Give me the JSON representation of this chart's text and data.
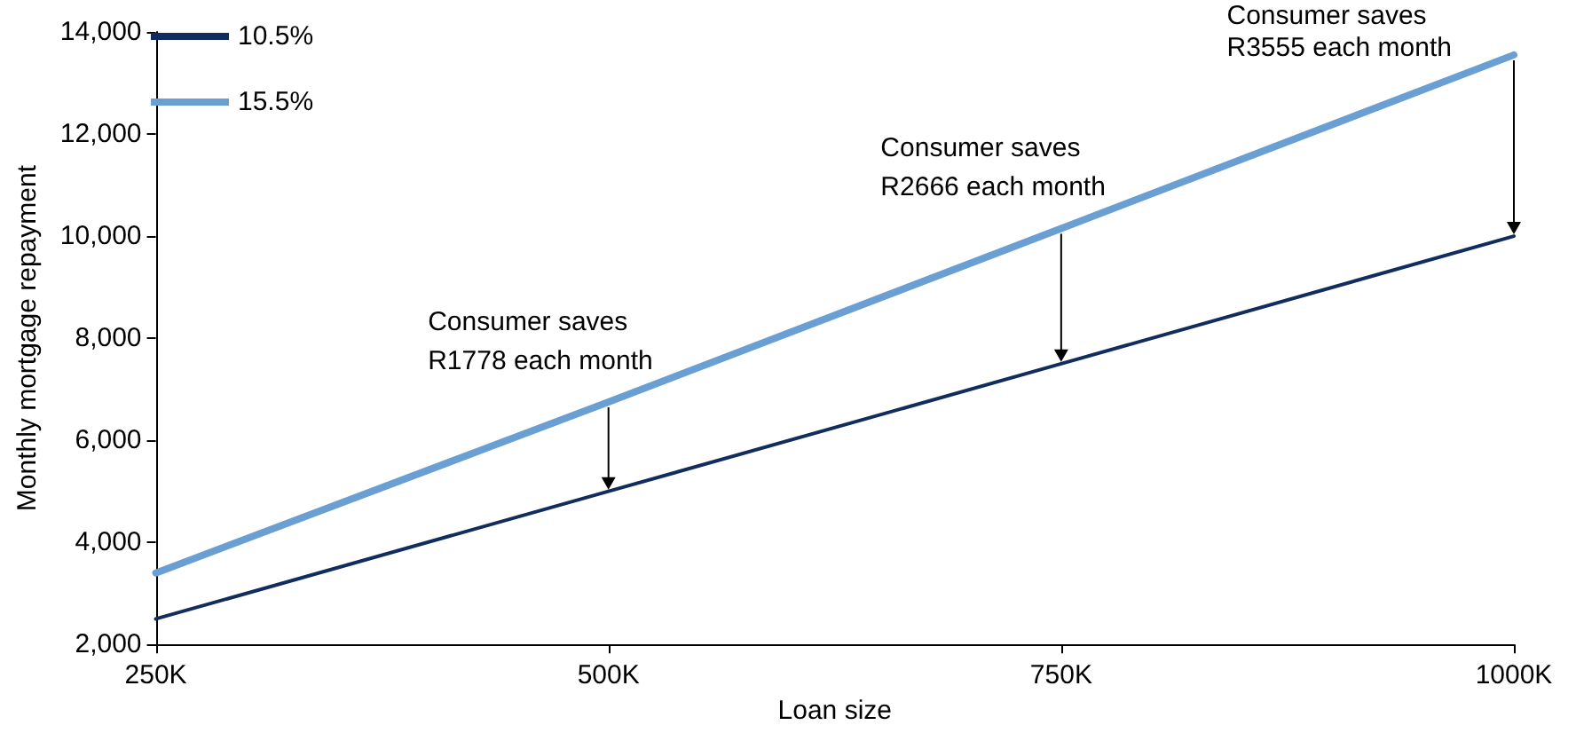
{
  "chart_data": {
    "type": "line",
    "xlabel": "Loan size",
    "ylabel": "Monthly mortgage repayment",
    "x": [
      250000,
      500000,
      750000,
      1000000
    ],
    "series": [
      {
        "name": "10.5%",
        "color": "#112d5e",
        "values": [
          2500,
          5000,
          7500,
          10000
        ]
      },
      {
        "name": "15.5%",
        "color": "#6a9fd3",
        "values": [
          3400,
          6750,
          10150,
          13550
        ]
      }
    ],
    "xlim": [
      250000,
      1000000
    ],
    "xticks": [
      {
        "value": 250000,
        "label": "250K"
      },
      {
        "value": 500000,
        "label": "500K"
      },
      {
        "value": 750000,
        "label": "750K"
      },
      {
        "value": 1000000,
        "label": "1000K"
      }
    ],
    "ylim": [
      2000,
      14000
    ],
    "yticks": [
      {
        "value": 2000,
        "label": "2,000"
      },
      {
        "value": 4000,
        "label": "4,000"
      },
      {
        "value": 6000,
        "label": "6,000"
      },
      {
        "value": 8000,
        "label": "8,000"
      },
      {
        "value": 10000,
        "label": "10,000"
      },
      {
        "value": 12000,
        "label": "12,000"
      },
      {
        "value": 14000,
        "label": "14,000"
      }
    ],
    "annotations": [
      {
        "text": "Consumer saves\nR1778 each month",
        "x": 500000,
        "y": 6750
      },
      {
        "text": "Consumer saves\nR2666 each month",
        "x": 750000,
        "y": 10150
      },
      {
        "text": "Consumer saves\nR3555 each month",
        "x": 1000000,
        "y": 13550
      }
    ],
    "grid": false,
    "legend": "top left",
    "marker": "none",
    "line_style": "solid"
  }
}
